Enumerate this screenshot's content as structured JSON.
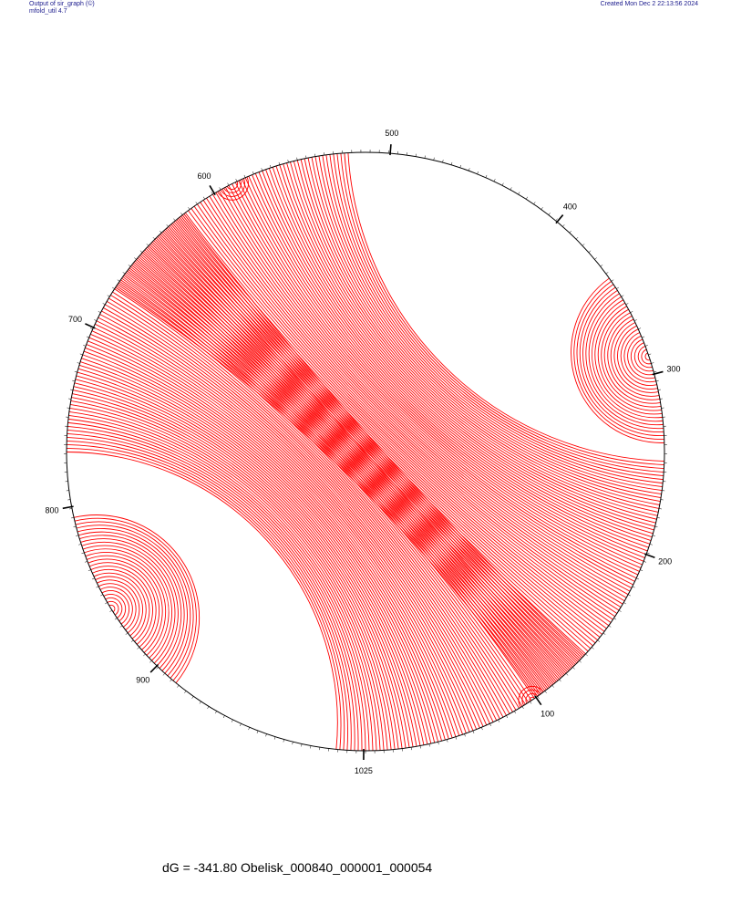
{
  "header": {
    "program_line": "Output of sir_graph (©)",
    "version_line": "mfold_util 4.7",
    "created_line": "Created Mon Dec  2 22:13:56 2024"
  },
  "diagram": {
    "type": "circle-plot",
    "sequence_length": 1025,
    "position_labels": [
      {
        "pos": 100,
        "label": "100"
      },
      {
        "pos": 200,
        "label": "200"
      },
      {
        "pos": 300,
        "label": "300"
      },
      {
        "pos": 400,
        "label": "400"
      },
      {
        "pos": 500,
        "label": "500"
      },
      {
        "pos": 600,
        "label": "600"
      },
      {
        "pos": 700,
        "label": "700"
      },
      {
        "pos": 800,
        "label": "800"
      },
      {
        "pos": 900,
        "label": "900"
      },
      {
        "pos": 1025,
        "label": "1025"
      }
    ],
    "colors": {
      "backbone": "#000000",
      "pair_red": "#ff0000",
      "pair_blue": "#2a2aff",
      "pair_magenta": "#cc1ccc",
      "pair_green": "#009900"
    }
  },
  "caption": {
    "text": "dG =  -341.80 Obelisk_000840_000001_000054"
  }
}
